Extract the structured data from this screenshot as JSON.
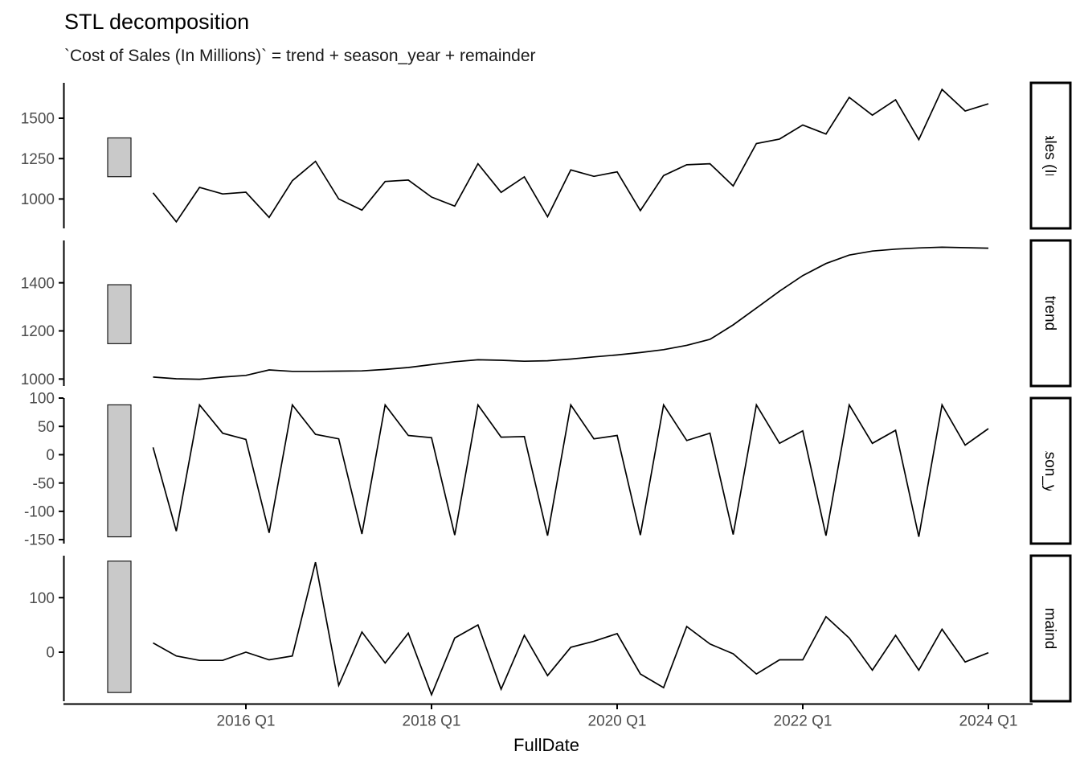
{
  "title": "STL decomposition",
  "subtitle": "`Cost of Sales (In Millions)` = trend + season_year + remainder",
  "x_axis": {
    "label": "FullDate",
    "tick_labels": [
      "2016 Q1",
      "2018 Q1",
      "2020 Q1",
      "2022 Q1",
      "2024 Q1"
    ],
    "tick_quarter_index": [
      4,
      12,
      20,
      28,
      36
    ]
  },
  "colors": {
    "line": "#000000",
    "axis_text": "#4d4d4d",
    "axis_line": "#000000",
    "scale_bar_fill": "#c9c9c9",
    "scale_bar_border": "#1a1a1a",
    "strip_border": "#000000",
    "strip_fill": "#ffffff",
    "background": "#ffffff"
  },
  "chart_data": {
    "type": "line",
    "title": "STL decomposition",
    "subtitle": "`Cost of Sales (In Millions)` = trend + season_year + remainder",
    "xlabel": "FullDate",
    "frequency": "quarterly",
    "grid": false,
    "legend": false,
    "strip_position": "right",
    "x": [
      "2015 Q1",
      "2015 Q2",
      "2015 Q3",
      "2015 Q4",
      "2016 Q1",
      "2016 Q2",
      "2016 Q3",
      "2016 Q4",
      "2017 Q1",
      "2017 Q2",
      "2017 Q3",
      "2017 Q4",
      "2018 Q1",
      "2018 Q2",
      "2018 Q3",
      "2018 Q4",
      "2019 Q1",
      "2019 Q2",
      "2019 Q3",
      "2019 Q4",
      "2020 Q1",
      "2020 Q2",
      "2020 Q3",
      "2020 Q4",
      "2021 Q1",
      "2021 Q2",
      "2021 Q3",
      "2021 Q4",
      "2022 Q1",
      "2022 Q2",
      "2022 Q3",
      "2022 Q4",
      "2023 Q1",
      "2023 Q2",
      "2023 Q3",
      "2023 Q4",
      "2024 Q1"
    ],
    "panels": [
      {
        "label": "Cost of Sales (In Millions)",
        "y_ticks": [
          1500,
          1250,
          1000
        ],
        "ylim": [
          818,
          1719
        ],
        "scale_bar": [
          1138,
          1378
        ],
        "values": [
          1038,
          859,
          1072,
          1031,
          1042,
          886,
          1113,
          1233,
          1000,
          931,
          1108,
          1117,
          1012,
          956,
          1218,
          1041,
          1137,
          890,
          1180,
          1140,
          1168,
          928,
          1145,
          1212,
          1218,
          1081,
          1343,
          1371,
          1458,
          1402,
          1629,
          1519,
          1614,
          1367,
          1678,
          1545,
          1589
        ]
      },
      {
        "label": "trend",
        "y_ticks": [
          1400,
          1200,
          1000
        ],
        "ylim": [
          971,
          1576
        ],
        "scale_bar": [
          1147,
          1392
        ],
        "values": [
          1008,
          1001,
          999,
          1008,
          1015,
          1038,
          1032,
          1032,
          1033,
          1034,
          1040,
          1048,
          1060,
          1072,
          1080,
          1078,
          1074,
          1076,
          1083,
          1092,
          1100,
          1110,
          1122,
          1140,
          1165,
          1225,
          1295,
          1365,
          1430,
          1480,
          1515,
          1532,
          1540,
          1545,
          1548,
          1546,
          1544
        ]
      },
      {
        "label": "season_year",
        "y_ticks": [
          100,
          50,
          0,
          -50,
          -100,
          -150
        ],
        "ylim": [
          -157,
          100
        ],
        "scale_bar": [
          -145,
          88
        ],
        "values": [
          13,
          -135,
          88,
          38,
          27,
          -138,
          88,
          36,
          28,
          -140,
          88,
          34,
          30,
          -142,
          88,
          31,
          32,
          -143,
          88,
          28,
          34,
          -142,
          88,
          25,
          38,
          -141,
          88,
          20,
          42,
          -143,
          88,
          20,
          43,
          -145,
          88,
          17,
          46
        ]
      },
      {
        "label": "remainder",
        "y_ticks": [
          100,
          0
        ],
        "ylim": [
          -90,
          177
        ],
        "scale_bar": [
          -74,
          167
        ],
        "values": [
          17,
          -7,
          -15,
          -15,
          0,
          -14,
          -7,
          165,
          -61,
          37,
          -20,
          35,
          -78,
          26,
          50,
          -68,
          31,
          -43,
          9,
          20,
          34,
          -40,
          -65,
          47,
          15,
          -3,
          -40,
          -14,
          -14,
          65,
          26,
          -33,
          31,
          -33,
          42,
          -18,
          -1
        ]
      }
    ]
  }
}
